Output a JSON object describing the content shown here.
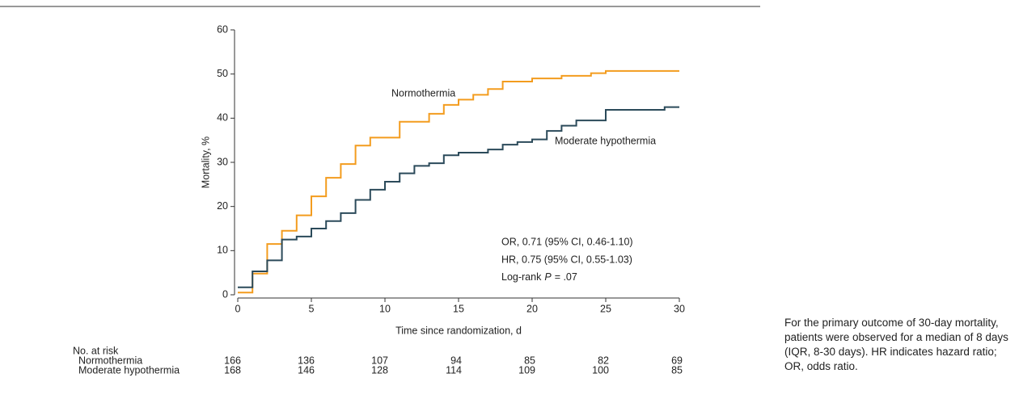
{
  "chart_data": {
    "type": "step",
    "xlabel": "Time since randomization, d",
    "ylabel": "Mortality, %",
    "xlim": [
      0,
      30
    ],
    "xticks": [
      0,
      5,
      10,
      15,
      20,
      25,
      30
    ],
    "ylim": [
      0,
      60
    ],
    "yticks": [
      0,
      10,
      20,
      30,
      40,
      50,
      60
    ],
    "series": [
      {
        "name": "Normothermia",
        "color": "#f39c1e",
        "x": [
          0,
          1,
          2,
          3,
          4,
          5,
          6,
          7,
          8,
          9,
          11,
          13,
          14,
          15,
          16,
          17,
          18,
          20,
          22,
          24,
          25,
          30
        ],
        "values": [
          0.5,
          4.8,
          11.5,
          14.5,
          18,
          22.3,
          26.5,
          29.6,
          33.8,
          35.6,
          39.2,
          41,
          43,
          44.2,
          45.3,
          46.6,
          48.3,
          49,
          49.6,
          50.2,
          50.7,
          50.7
        ]
      },
      {
        "name": "Moderate hypothermia",
        "color": "#2b4a5a",
        "x": [
          0,
          1,
          2,
          3,
          4,
          5,
          6,
          7,
          8,
          9,
          10,
          11,
          12,
          13,
          14,
          15,
          17,
          18,
          19,
          20,
          21,
          22,
          23,
          25,
          29,
          30
        ],
        "values": [
          1.7,
          5.3,
          7.8,
          12.5,
          13.2,
          15,
          16.7,
          18.5,
          21.5,
          23.8,
          25.6,
          27.5,
          29.2,
          29.8,
          31.6,
          32.2,
          32.9,
          34,
          34.6,
          35.2,
          37.1,
          38.3,
          39.5,
          41.9,
          42.5,
          42.5
        ]
      }
    ],
    "annotations": [
      "OR, 0.71 (95% CI, 0.46-1.10)",
      "HR, 0.75 (95% CI, 0.55-1.03)"
    ],
    "pvalue_text": [
      "Log-rank",
      "P",
      "= .07"
    ],
    "risk_table": {
      "title": "No. at risk",
      "rows": [
        {
          "name": "Normothermia",
          "values": [
            166,
            136,
            107,
            94,
            85,
            82,
            69
          ]
        },
        {
          "name": "Moderate hypothermia",
          "values": [
            168,
            146,
            128,
            114,
            109,
            100,
            85
          ]
        }
      ]
    }
  },
  "caption": "For the primary outcome of 30-day mortality, patients were observed for a median of 8 days (IQR, 8-30 days). HR indicates hazard ratio; OR, odds ratio."
}
